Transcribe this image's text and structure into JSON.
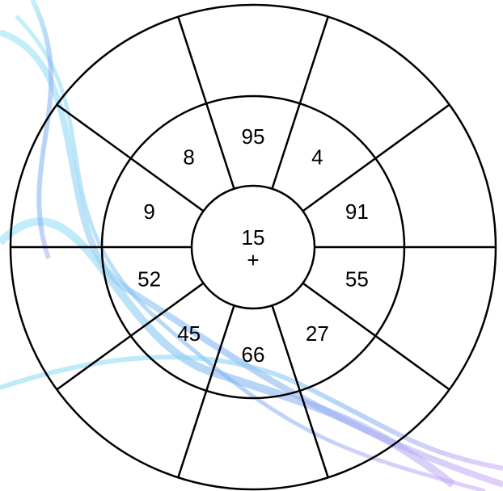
{
  "center": {
    "value": 15,
    "operator": "+"
  },
  "segments": [
    95,
    4,
    91,
    55,
    27,
    66,
    45,
    52,
    9,
    8
  ]
}
